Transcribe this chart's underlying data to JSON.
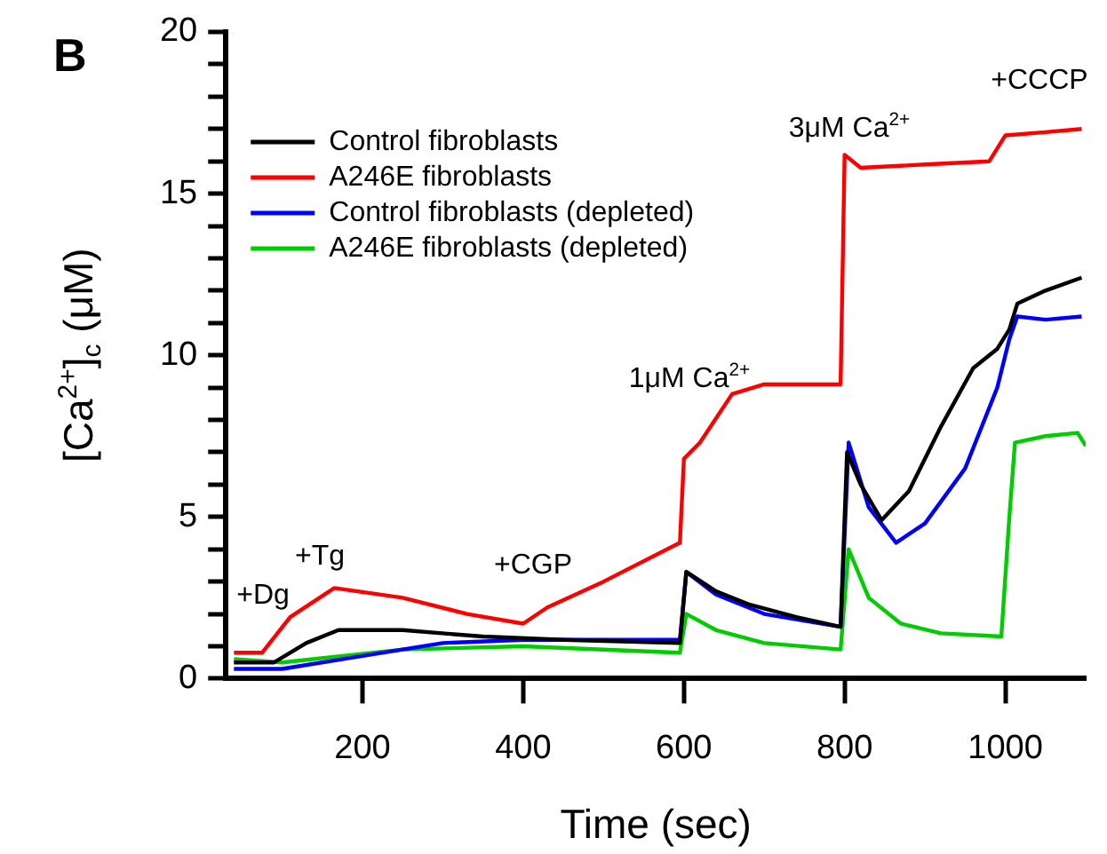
{
  "chart_data": {
    "type": "line",
    "xlabel": "Time (sec)",
    "ylabel": "[Ca$^{2+}$]$_{c}$ (μM)",
    "xlim": [
      30,
      1100
    ],
    "xticks": [
      200,
      400,
      600,
      800,
      1000
    ],
    "ylim": [
      0,
      20
    ],
    "yticks": [
      0,
      {
        "value": 1,
        "label": null
      },
      {
        "value": 2,
        "label": null
      },
      {
        "value": 3,
        "label": null
      },
      {
        "value": 4,
        "label": null
      },
      5,
      {
        "value": 6,
        "label": null
      },
      {
        "value": 7,
        "label": null
      },
      {
        "value": 8,
        "label": null
      },
      {
        "value": 9,
        "label": null
      },
      10,
      {
        "value": 11,
        "label": null
      },
      {
        "value": 12,
        "label": null
      },
      {
        "value": 13,
        "label": null
      },
      {
        "value": 14,
        "label": null
      },
      15,
      {
        "value": 16,
        "label": null
      },
      {
        "value": 17,
        "label": null
      },
      {
        "value": 18,
        "label": null
      },
      {
        "value": 19,
        "label": null
      },
      20
    ],
    "grid": false,
    "legend": "top left",
    "marker": "none",
    "line_style": "solid",
    "series": [
      {
        "name": "Control fibroblasts",
        "color": "#000000",
        "x": [
          40,
          90,
          130,
          170,
          250,
          350,
          450,
          595,
          603,
          640,
          680,
          740,
          795,
          803,
          820,
          846,
          880,
          920,
          960,
          990,
          1005,
          1015,
          1050,
          1095
        ],
        "values": [
          0.5,
          0.5,
          1.1,
          1.5,
          1.5,
          1.3,
          1.2,
          1.1,
          3.3,
          2.7,
          2.3,
          1.9,
          1.6,
          7.0,
          6.0,
          4.9,
          5.8,
          7.8,
          9.6,
          10.2,
          10.8,
          11.6,
          12.0,
          12.4
        ]
      },
      {
        "name": "A246E fibroblasts",
        "color": "#ff0000",
        "x": [
          40,
          75,
          110,
          165,
          250,
          330,
          400,
          430,
          500,
          595,
          600,
          620,
          660,
          700,
          795,
          800,
          820,
          900,
          980,
          1000,
          1050,
          1095
        ],
        "values": [
          0.8,
          0.8,
          1.9,
          2.8,
          2.5,
          2.0,
          1.7,
          2.2,
          3.0,
          4.2,
          6.8,
          7.3,
          8.8,
          9.1,
          9.1,
          16.2,
          15.8,
          15.9,
          16.0,
          16.8,
          16.9,
          17.0
        ]
      },
      {
        "name": "Control fibroblasts (depleted)",
        "color": "#0000ff",
        "x": [
          40,
          100,
          200,
          300,
          400,
          595,
          603,
          640,
          700,
          795,
          805,
          830,
          864,
          900,
          950,
          990,
          1005,
          1015,
          1050,
          1095
        ],
        "values": [
          0.3,
          0.3,
          0.7,
          1.1,
          1.2,
          1.2,
          3.3,
          2.6,
          2.0,
          1.6,
          7.3,
          5.3,
          4.2,
          4.8,
          6.5,
          9.0,
          10.5,
          11.2,
          11.1,
          11.2
        ]
      },
      {
        "name": "A246E fibroblasts (depleted)",
        "color": "#00cc00",
        "x": [
          40,
          100,
          250,
          400,
          595,
          603,
          640,
          700,
          795,
          805,
          830,
          870,
          920,
          995,
          1005,
          1012,
          1050,
          1090,
          1100
        ],
        "values": [
          0.6,
          0.5,
          0.9,
          1.0,
          0.8,
          2.0,
          1.5,
          1.1,
          0.9,
          4.0,
          2.5,
          1.7,
          1.4,
          1.3,
          5.0,
          7.3,
          7.5,
          7.6,
          7.2
        ]
      }
    ],
    "annotations": [
      "B",
      "+Dg",
      "+Tg",
      "+CGP",
      "1μM Ca$^{2+}$",
      "3μM Ca$^{2+}$",
      "+CCCP"
    ]
  }
}
